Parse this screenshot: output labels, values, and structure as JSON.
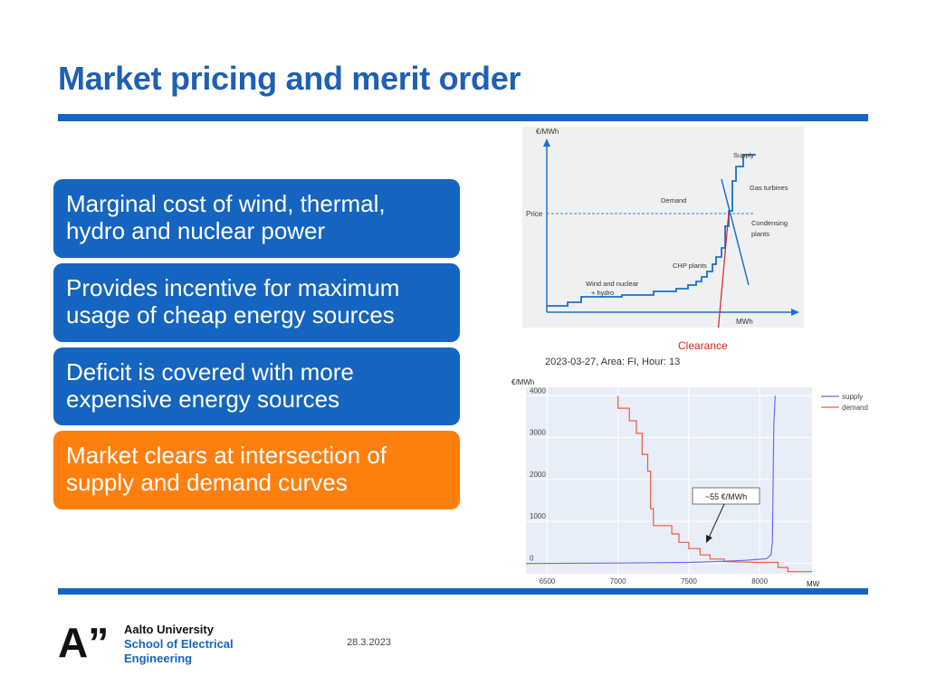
{
  "slide": {
    "title": "Market pricing and merit order",
    "boxes": [
      {
        "text": "Marginal cost of wind, thermal, hydro and nuclear power",
        "color": "#1565c0"
      },
      {
        "text": "Provides incentive for maximum usage of cheap energy sources",
        "color": "#1565c0"
      },
      {
        "text": "Deficit is covered with more expensive energy sources",
        "color": "#1565c0"
      },
      {
        "text": "Market clears at intersection of supply and demand curves",
        "color": "#ff7f0e"
      }
    ],
    "date": "28.3.2023"
  },
  "footer": {
    "logo_text": "A”",
    "line1": "Aalto University",
    "line2": "School of Electrical",
    "line3": "Engineering"
  },
  "diagram": {
    "y_axis_label": "€/MWh",
    "x_axis_label": "MWh",
    "price_label": "Price",
    "labels": {
      "supply": "Supply",
      "gas_turbines": "Gas turbines",
      "demand": "Demand",
      "condensing_line1": "Condensing",
      "condensing_line2": "plants",
      "chp": "CHP plants",
      "wind_line1": "Wind and nuclear",
      "wind_line2": "+ hydro",
      "clearance": "Clearance"
    }
  },
  "chart_data": {
    "type": "line",
    "title": "2023-03-27, Area: FI, Hour: 13",
    "ylabel": "€/MWh",
    "xlabel": "MW",
    "xlim": [
      6350,
      8370
    ],
    "ylim": [
      -250,
      4200
    ],
    "x_ticks": [
      6500,
      7000,
      7500,
      8000
    ],
    "y_ticks": [
      0,
      1000,
      2000,
      3000,
      4000
    ],
    "legend_position": "top-right",
    "annotation": "~55 €/MWh",
    "series": [
      {
        "name": "supply",
        "color": "#6b6bf0",
        "points": [
          [
            6350,
            -5
          ],
          [
            7000,
            5
          ],
          [
            7500,
            20
          ],
          [
            7650,
            35
          ],
          [
            7800,
            55
          ],
          [
            7900,
            70
          ],
          [
            8000,
            95
          ],
          [
            8050,
            110
          ],
          [
            8080,
            200
          ],
          [
            8090,
            500
          ],
          [
            8100,
            3300
          ],
          [
            8110,
            4000
          ]
        ]
      },
      {
        "name": "demand",
        "color": "#f05a3a",
        "points": [
          [
            7000,
            4000
          ],
          [
            7000,
            3700
          ],
          [
            7080,
            3700
          ],
          [
            7080,
            3400
          ],
          [
            7130,
            3400
          ],
          [
            7130,
            3100
          ],
          [
            7170,
            3100
          ],
          [
            7170,
            2600
          ],
          [
            7210,
            2600
          ],
          [
            7210,
            2200
          ],
          [
            7230,
            2200
          ],
          [
            7230,
            1300
          ],
          [
            7250,
            1300
          ],
          [
            7250,
            900
          ],
          [
            7380,
            900
          ],
          [
            7380,
            700
          ],
          [
            7430,
            700
          ],
          [
            7430,
            500
          ],
          [
            7500,
            500
          ],
          [
            7500,
            350
          ],
          [
            7580,
            350
          ],
          [
            7580,
            200
          ],
          [
            7650,
            200
          ],
          [
            7650,
            100
          ],
          [
            7750,
            100
          ],
          [
            7750,
            40
          ],
          [
            8000,
            20
          ],
          [
            8130,
            20
          ],
          [
            8130,
            -100
          ],
          [
            8200,
            -100
          ],
          [
            8200,
            -200
          ],
          [
            8370,
            -200
          ]
        ]
      }
    ]
  }
}
